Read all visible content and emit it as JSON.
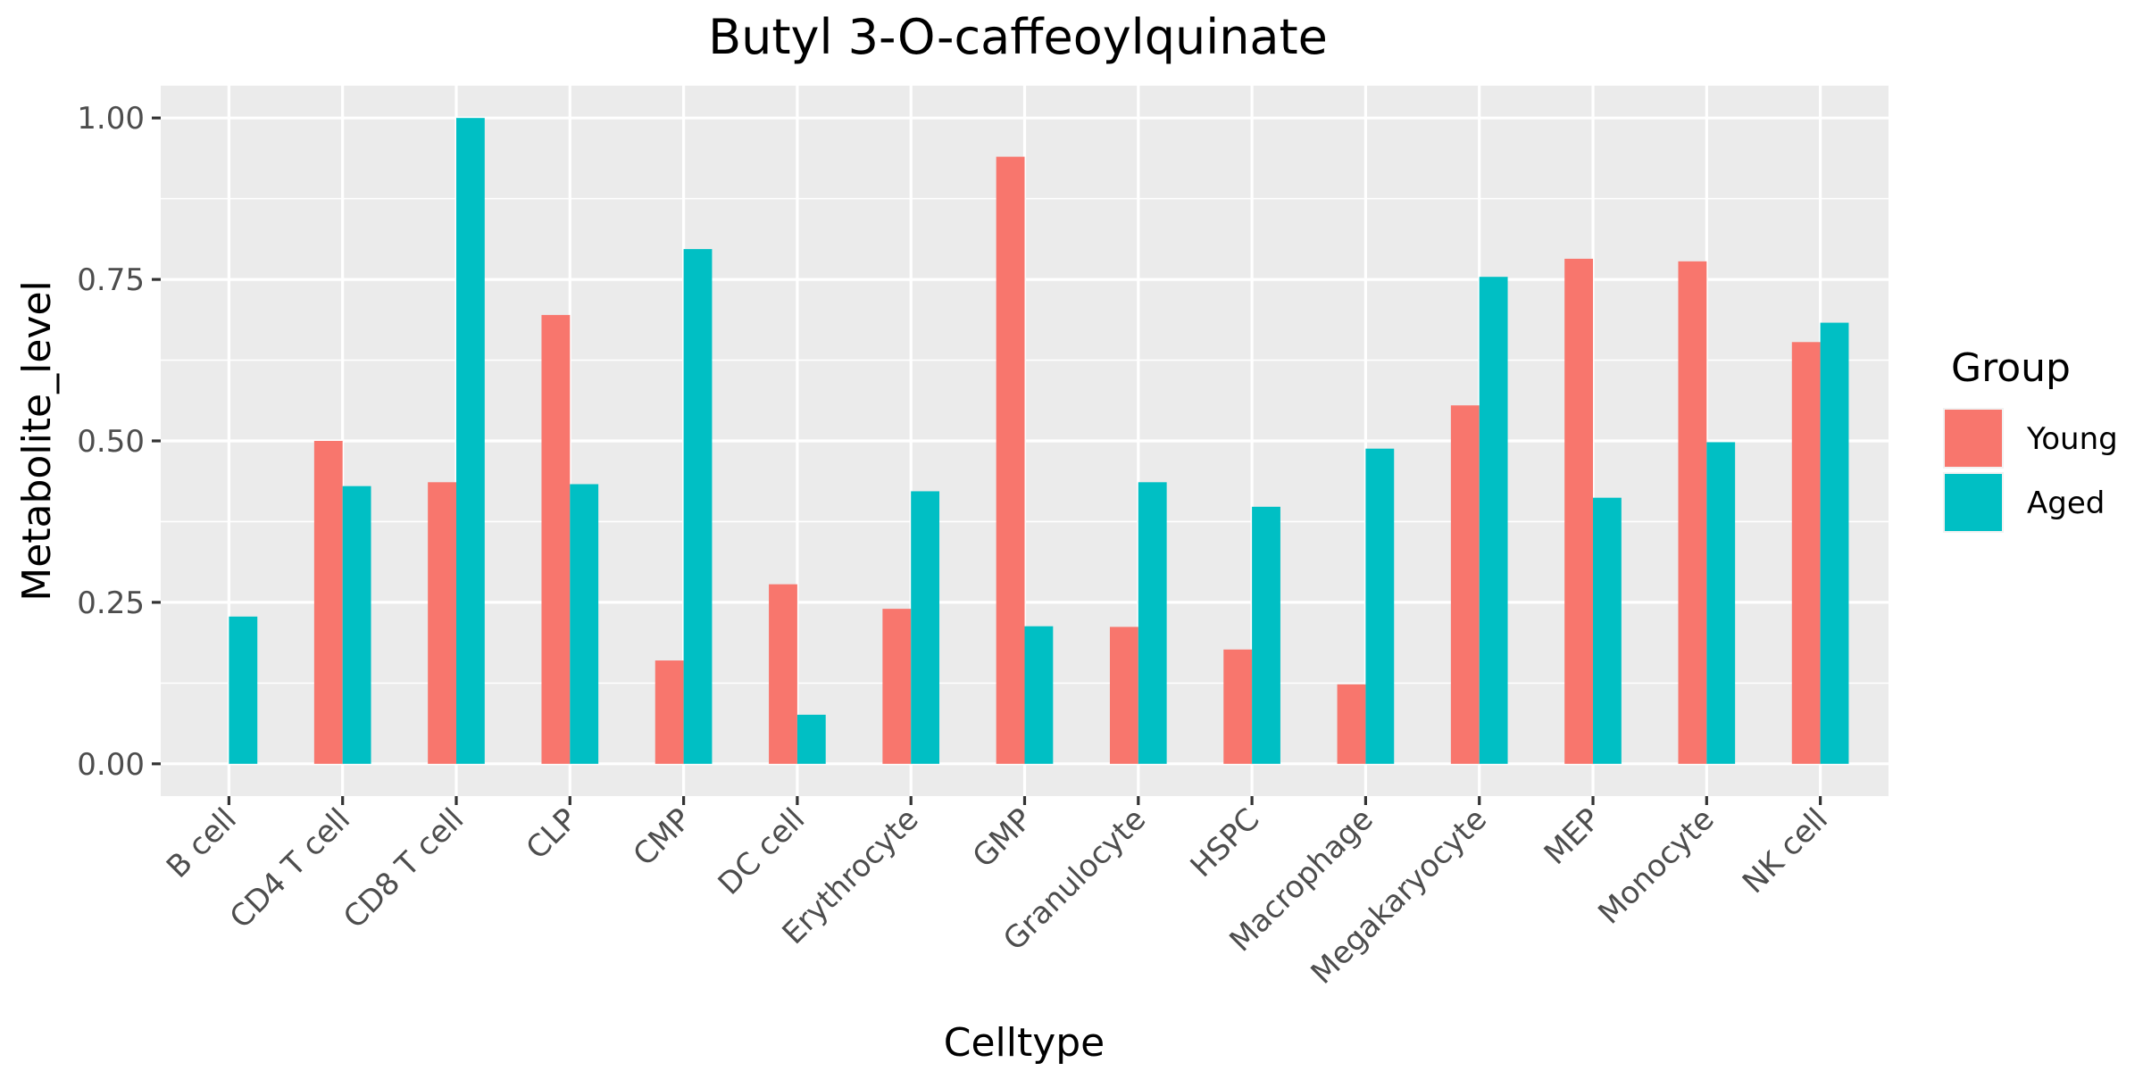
{
  "chart_data": {
    "type": "bar",
    "title": "Butyl 3-O-caffeoylquinate",
    "xlabel": "Celltype",
    "ylabel": "Metabolite_level",
    "ylim": [
      -0.05,
      1.05
    ],
    "yticks": [
      0,
      0.25,
      0.5,
      0.75,
      1.0
    ],
    "ytick_labels": [
      "0.00",
      "0.25",
      "0.50",
      "0.75",
      "1.00"
    ],
    "grid": true,
    "legend_title": "Group",
    "legend_position": "right",
    "categories": [
      "B cell",
      "CD4 T cell",
      "CD8 T cell",
      "CLP",
      "CMP",
      "DC cell",
      "Erythrocyte",
      "GMP",
      "Granulocyte",
      "HSPC",
      "Macrophage",
      "Megakaryocyte",
      "MEP",
      "Monocyte",
      "NK cell"
    ],
    "series": [
      {
        "name": "Young",
        "color": "#F8766D",
        "values": [
          0.0,
          0.5,
          0.436,
          0.695,
          0.16,
          0.278,
          0.24,
          0.94,
          0.212,
          0.177,
          0.123,
          0.555,
          0.782,
          0.778,
          0.653
        ]
      },
      {
        "name": "Aged",
        "color": "#00BFC4",
        "values": [
          0.228,
          0.43,
          1.0,
          0.433,
          0.797,
          0.076,
          0.422,
          0.213,
          0.436,
          0.398,
          0.488,
          0.754,
          0.412,
          0.498,
          0.683
        ]
      }
    ]
  }
}
